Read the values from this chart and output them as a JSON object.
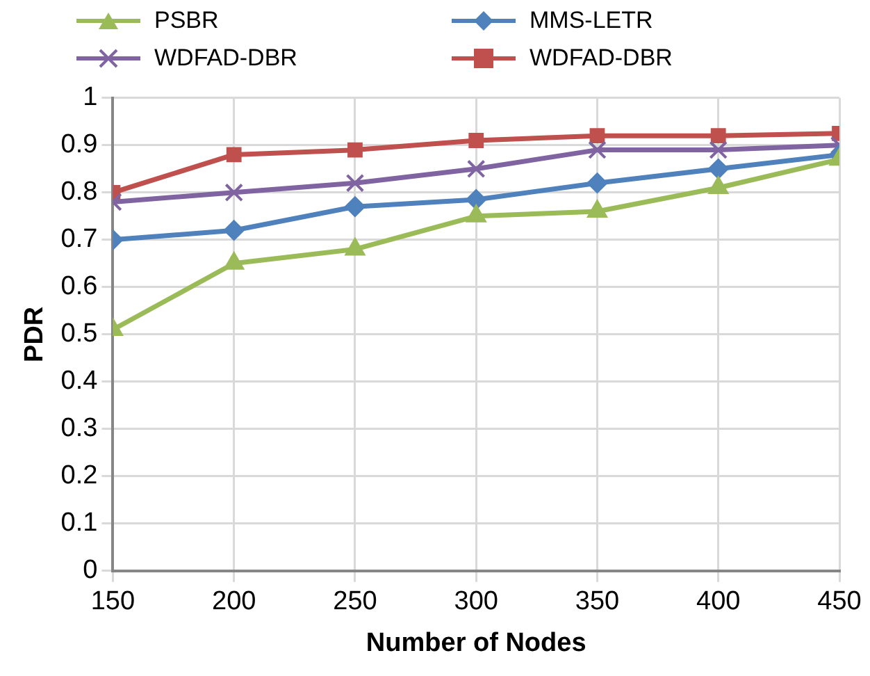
{
  "chart_data": {
    "type": "line",
    "xlabel": "Number of Nodes",
    "ylabel": "PDR",
    "x": [
      150,
      200,
      250,
      300,
      350,
      400,
      450
    ],
    "xlim": [
      150,
      450
    ],
    "xticks": [
      150,
      200,
      250,
      300,
      350,
      400,
      450
    ],
    "ylim": [
      0,
      1
    ],
    "yticks": [
      0,
      0.1,
      0.2,
      0.3,
      0.4,
      0.5,
      0.6,
      0.7,
      0.8,
      0.9,
      1
    ],
    "grid": true,
    "legend": "top",
    "line_style": "solid",
    "series": [
      {
        "name": "PSBR",
        "color": "#9bbb59",
        "marker": "triangle",
        "values": [
          0.51,
          0.65,
          0.68,
          0.75,
          0.76,
          0.81,
          0.87
        ]
      },
      {
        "name": "MMS-LETR",
        "color": "#4f81bd",
        "marker": "diamond",
        "values": [
          0.7,
          0.72,
          0.77,
          0.785,
          0.82,
          0.85,
          0.88
        ]
      },
      {
        "name": "WDFAD-DBR",
        "color": "#8064a2",
        "marker": "cross",
        "values": [
          0.78,
          0.8,
          0.82,
          0.85,
          0.89,
          0.89,
          0.9
        ]
      },
      {
        "name": "WDFAD-DBR",
        "color": "#c0504d",
        "marker": "square",
        "values": [
          0.8,
          0.88,
          0.89,
          0.91,
          0.92,
          0.92,
          0.925
        ]
      }
    ]
  }
}
